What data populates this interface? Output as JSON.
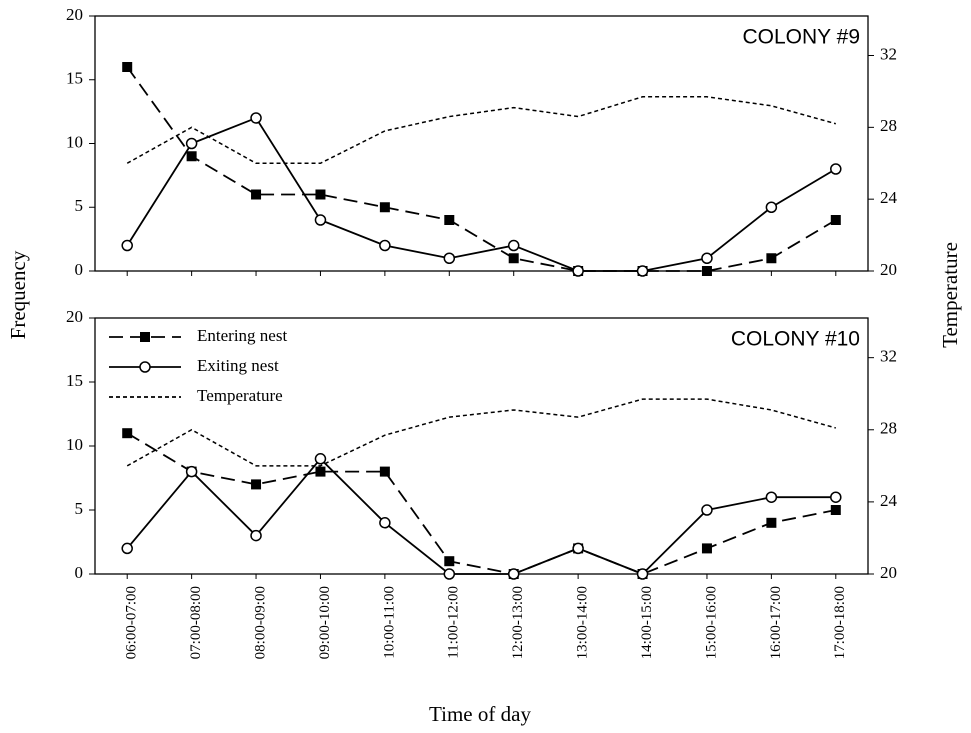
{
  "xlabel": "Time of day",
  "ylabel": "Frequency",
  "y2label": "Temperature",
  "categories": [
    "06:00-07:00",
    "07:00-08:00",
    "08:00-09:00",
    "09:00-10:00",
    "10:00-11:00",
    "11:00-12:00",
    "12:00-13:00",
    "13:00-14:00",
    "14:00-15:00",
    "15:00-16:00",
    "16:00-17:00",
    "17:00-18:00"
  ],
  "chart_data": [
    {
      "type": "line",
      "title": "COLONY #9",
      "ylim": [
        0,
        20
      ],
      "yticks": [
        0,
        5,
        10,
        15,
        20
      ],
      "y2lim": [
        20,
        34.2
      ],
      "y2ticks": [
        20,
        24,
        28,
        32
      ],
      "series": [
        {
          "color": "#000000",
          "marker": "square",
          "dash": "dashed",
          "values": [
            16,
            9,
            6,
            6,
            5,
            4,
            1,
            0,
            0,
            0,
            1,
            4
          ]
        },
        {
          "color": "#000000",
          "marker": "circle",
          "dash": "solid",
          "values": [
            2,
            10,
            12,
            4,
            2,
            1,
            2,
            0,
            0,
            1,
            5,
            8
          ]
        },
        {
          "color": "#000000",
          "dash": "dotted",
          "axis": "y2",
          "values": [
            26,
            28,
            26,
            26,
            27.8,
            28.6,
            29.1,
            28.6,
            29.7,
            29.7,
            29.2,
            28.2
          ]
        }
      ]
    },
    {
      "type": "line",
      "title": "COLONY #10",
      "legend": "upper left",
      "ylim": [
        0,
        20
      ],
      "yticks": [
        0,
        5,
        10,
        15,
        20
      ],
      "y2lim": [
        20,
        34.2
      ],
      "y2ticks": [
        20,
        24,
        28,
        32
      ],
      "series": [
        {
          "name": "Entering nest",
          "color": "#000000",
          "marker": "square",
          "dash": "dashed",
          "values": [
            11,
            8,
            7,
            8,
            8,
            1,
            0,
            2,
            0,
            2,
            4,
            5
          ]
        },
        {
          "name": "Exiting nest",
          "color": "#000000",
          "marker": "circle",
          "dash": "solid",
          "values": [
            2,
            8,
            3,
            9,
            4,
            0,
            0,
            2,
            0,
            5,
            6,
            6
          ]
        },
        {
          "name": "Temperature",
          "color": "#000000",
          "dash": "dotted",
          "axis": "y2",
          "values": [
            26,
            28,
            26,
            26,
            27.7,
            28.7,
            29.1,
            28.7,
            29.7,
            29.7,
            29.1,
            28.1
          ]
        }
      ]
    }
  ]
}
